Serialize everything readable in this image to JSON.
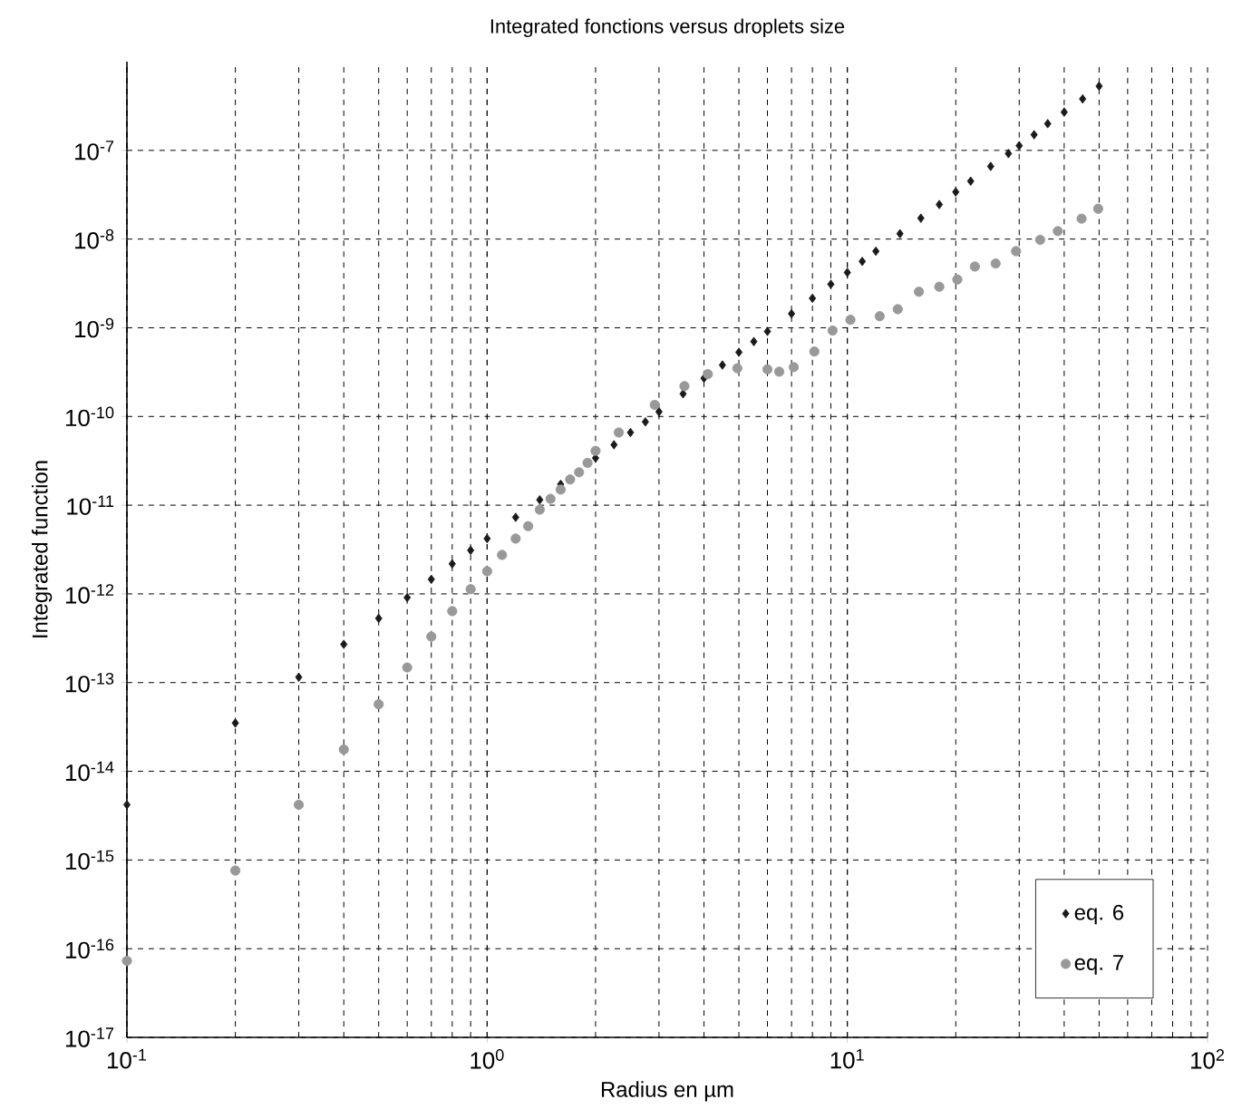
{
  "chart_data": {
    "type": "scatter",
    "title": "Integrated fonctions versus droplets size",
    "xlabel": "Radius en µm",
    "ylabel": "Integrated function",
    "log": "xy",
    "grid": true,
    "legend": "bottom right",
    "xlim": [
      0.1,
      100
    ],
    "ylim": [
      1e-17,
      1e-06
    ],
    "xticks": [
      {
        "value": 0.1,
        "label": "10$^{-1}$"
      },
      {
        "value": 1,
        "label": "10$^{0}$"
      },
      {
        "value": 10,
        "label": "10$^{1}$"
      },
      {
        "value": 100,
        "label": "10$^{2}$"
      }
    ],
    "yticks": [
      {
        "value": 1e-17,
        "label": "10$^{-17}$"
      },
      {
        "value": 1e-16,
        "label": "10$^{-16}$"
      },
      {
        "value": 1e-15,
        "label": "10$^{-15}$"
      },
      {
        "value": 1e-14,
        "label": "10$^{-14}$"
      },
      {
        "value": 1e-13,
        "label": "10$^{-13}$"
      },
      {
        "value": 1e-12,
        "label": "10$^{-12}$"
      },
      {
        "value": 1e-11,
        "label": "10$^{-11}$"
      },
      {
        "value": 1e-10,
        "label": "10$^{-10}$"
      },
      {
        "value": 1e-09,
        "label": "10$^{-9}$"
      },
      {
        "value": 1e-08,
        "label": "10$^{-8}$"
      },
      {
        "value": 1e-07,
        "label": "10$^{-7}$"
      }
    ],
    "series": [
      {
        "name": "eq. 6",
        "color": "#1a1a1a",
        "marker": "diamond",
        "x": [
          0.1,
          0.2,
          0.3,
          0.4,
          0.5,
          0.6,
          0.7,
          0.8,
          0.9,
          1,
          1.2,
          1.4,
          1.6,
          1.8,
          2,
          2.25,
          2.5,
          2.75,
          3,
          3.5,
          4,
          4.5,
          5,
          5.5,
          6,
          7,
          8,
          9,
          10,
          11,
          12,
          14,
          16,
          18,
          20,
          22,
          25,
          28,
          30,
          33,
          36,
          40,
          45,
          50
        ],
        "values": [
          4.2e-15,
          3.5e-14,
          1.15e-13,
          2.7e-13,
          5.3e-13,
          9.1e-13,
          1.46e-12,
          2.18e-12,
          3.1e-12,
          4.2e-12,
          7.3e-12,
          1.15e-11,
          1.72e-11,
          null,
          3.4e-11,
          4.8e-11,
          6.6e-11,
          8.7e-11,
          1.13e-10,
          1.8e-10,
          2.7e-10,
          3.8e-10,
          5.3e-10,
          7e-10,
          9.1e-10,
          1.44e-09,
          2.15e-09,
          3.1e-09,
          4.2e-09,
          5.6e-09,
          7.3e-09,
          1.15e-08,
          1.72e-08,
          2.45e-08,
          3.4e-08,
          4.5e-08,
          6.6e-08,
          9.2e-08,
          1.13e-07,
          1.5e-07,
          2e-07,
          2.7e-07,
          3.8e-07,
          5.3e-07
        ]
      },
      {
        "name": "eq. 7",
        "color": "#999999",
        "marker": "circle",
        "x": [
          0.1,
          0.2,
          0.3,
          0.4,
          0.5,
          0.6,
          0.7,
          0.8,
          0.9,
          1.0,
          1.1,
          1.2,
          1.3,
          1.4,
          1.5,
          1.6,
          1.7,
          1.8,
          1.9,
          2.0,
          2.32,
          2.92,
          3.53,
          4.1,
          4.95,
          6.0,
          6.47,
          7.1,
          8.1,
          9.1,
          10.2,
          12.3,
          13.8,
          15.8,
          18.0,
          20.2,
          22.6,
          25.8,
          29.4,
          34.3,
          38.4,
          44.7,
          49.7
        ],
        "values": [
          7.3e-17,
          7.6e-16,
          4.2e-15,
          1.76e-14,
          5.7e-14,
          1.48e-13,
          3.3e-13,
          6.4e-13,
          1.13e-12,
          1.8e-12,
          2.75e-12,
          4.2e-12,
          5.8e-12,
          8.9e-12,
          1.18e-11,
          1.5e-11,
          1.95e-11,
          2.35e-11,
          3e-11,
          4.1e-11,
          6.6e-11,
          1.35e-10,
          2.2e-10,
          3e-10,
          3.5e-10,
          3.4e-10,
          3.2e-10,
          3.6e-10,
          5.4e-10,
          9.3e-10,
          1.23e-09,
          1.35e-09,
          1.62e-09,
          2.55e-09,
          2.9e-09,
          3.5e-09,
          4.9e-09,
          5.3e-09,
          7.3e-09,
          9.8e-09,
          1.23e-08,
          1.7e-08,
          2.2e-08
        ]
      }
    ]
  }
}
